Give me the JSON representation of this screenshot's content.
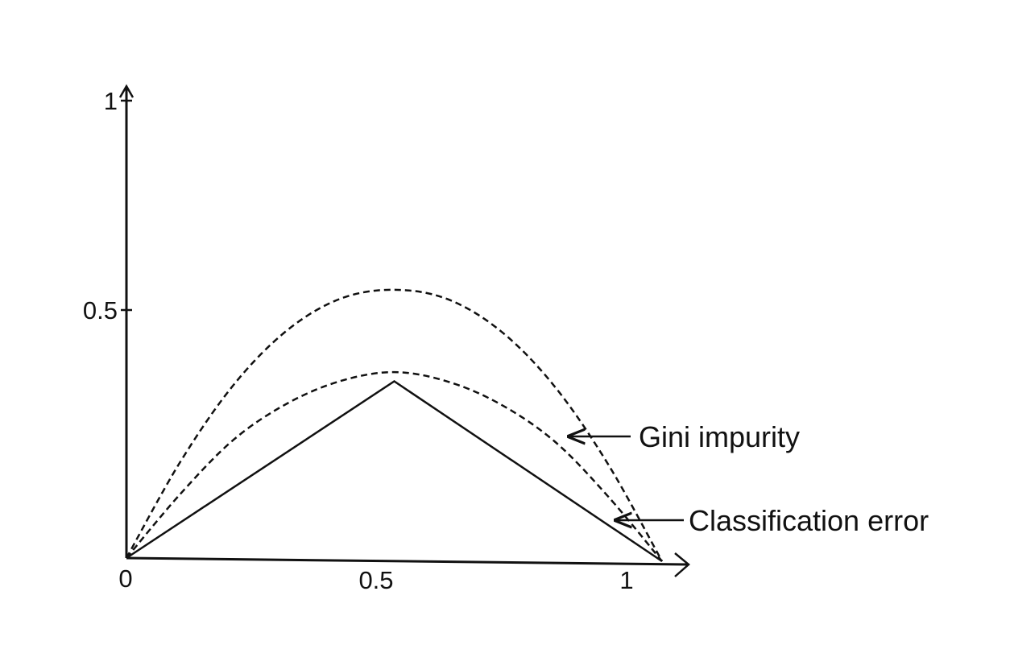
{
  "chart_data": {
    "type": "line",
    "title": "",
    "xlabel": "",
    "ylabel": "",
    "xlim": [
      0,
      1
    ],
    "ylim": [
      0,
      1
    ],
    "grid": false,
    "legend": "none",
    "x_ticks": [
      {
        "value": 0,
        "label": "0"
      },
      {
        "value": 0.5,
        "label": "0.5"
      },
      {
        "value": 1,
        "label": "1"
      }
    ],
    "y_ticks": [
      {
        "value": 0.5,
        "label": "0.5"
      },
      {
        "value": 1,
        "label": "1"
      }
    ],
    "series": [
      {
        "style": "dashed",
        "x": [
          0,
          0.1,
          0.2,
          0.3,
          0.4,
          0.5,
          0.6,
          0.7,
          0.8,
          0.9,
          1
        ],
        "values": [
          0,
          0.21,
          0.38,
          0.5,
          0.57,
          0.59,
          0.57,
          0.5,
          0.38,
          0.21,
          0
        ]
      },
      {
        "name": "Gini impurity",
        "style": "dashed",
        "x": [
          0,
          0.1,
          0.2,
          0.3,
          0.4,
          0.5,
          0.6,
          0.7,
          0.8,
          0.9,
          1
        ],
        "values": [
          0,
          0.14,
          0.26,
          0.34,
          0.39,
          0.41,
          0.39,
          0.34,
          0.26,
          0.14,
          0
        ]
      },
      {
        "name": "Classification error",
        "style": "solid",
        "x": [
          0,
          0.5,
          1
        ],
        "values": [
          0,
          0.39,
          0
        ]
      }
    ],
    "annotations": [
      {
        "text": "Gini impurity",
        "series": 1,
        "points_to_x": 0.83
      },
      {
        "text": "Classification error",
        "series": 2,
        "points_to_x": 0.92
      }
    ],
    "colors": {
      "line": "#111111",
      "background": "#ffffff"
    }
  }
}
